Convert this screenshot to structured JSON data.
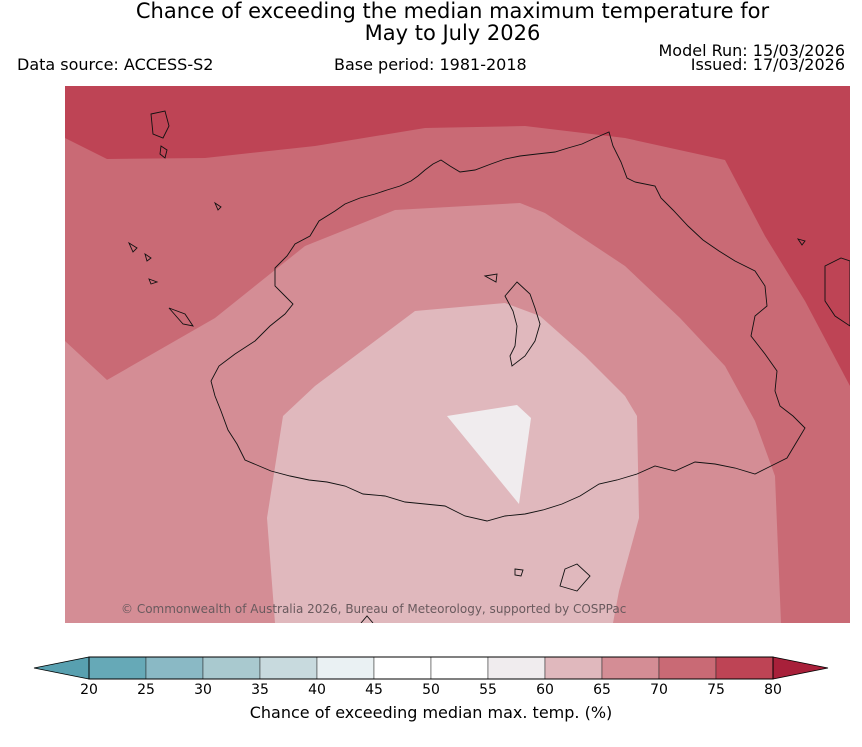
{
  "header": {
    "title_line1": "Chance of exceeding the median maximum temperature for",
    "title_line2": "May to July 2026",
    "data_source": "Data source: ACCESS-S2",
    "base_period": "Base period: 1981-2018",
    "model_run": "Model Run: 15/03/2026",
    "issued": "Issued: 17/03/2026"
  },
  "map": {
    "credit": "© Commonwealth of Australia 2026, Bureau of Meteorology, supported by COSPPac"
  },
  "colorbar": {
    "label": "Chance of exceeding median max. temp. (%)",
    "ticks": [
      "20",
      "25",
      "30",
      "35",
      "40",
      "45",
      "50",
      "55",
      "60",
      "65",
      "70",
      "75",
      "80"
    ],
    "colors": [
      "#66a9b7",
      "#8ab9c5",
      "#a9c9cf",
      "#c8dade",
      "#eaf1f3",
      "#ffffff",
      "#ffffff",
      "#f0ecee",
      "#e0b8bd",
      "#d48d95",
      "#c96a75",
      "#be4455"
    ],
    "under_color": "#58a0b0",
    "over_color": "#a8203a"
  }
}
